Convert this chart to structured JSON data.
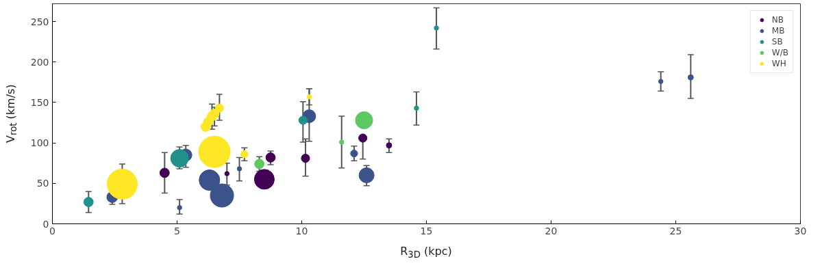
{
  "chart_data": {
    "type": "bubble",
    "xlabel": "R$_{3D}$ (kpc)",
    "ylabel": "V$_{rot}$ (km/s)",
    "xlim": [
      0,
      30
    ],
    "xticks": [
      0,
      5,
      10,
      15,
      20,
      25,
      30
    ],
    "ylim": [
      0,
      272
    ],
    "yticks": [
      0,
      50,
      100,
      150,
      200,
      250
    ],
    "grid": false,
    "legend": "top right",
    "marker": "circle",
    "series": [
      {
        "name": "NB",
        "color": "#440154",
        "x": [
          4.5,
          7.0,
          8.5,
          8.75,
          10.15,
          12.45,
          13.5
        ],
        "values": [
          63,
          62,
          55,
          82,
          81,
          106,
          97
        ],
        "sizes": [
          0.09,
          0.02,
          0.4,
          0.09,
          0.07,
          0.07,
          0.03
        ],
        "errors": [
          [
            38,
            88
          ],
          [
            48,
            75
          ],
          null,
          [
            73,
            90
          ],
          [
            59,
            105
          ],
          [
            80,
            106
          ],
          [
            88,
            105
          ]
        ]
      },
      {
        "name": "MB",
        "color": "#3b528b",
        "x": [
          2.4,
          5.1,
          5.35,
          6.3,
          6.8,
          7.5,
          10.3,
          12.1,
          12.6,
          24.4,
          25.6
        ],
        "values": [
          33,
          20,
          85,
          54,
          35,
          68,
          133,
          87,
          60,
          176,
          181
        ],
        "sizes": [
          0.12,
          0.02,
          0.15,
          0.43,
          0.55,
          0.02,
          0.17,
          0.05,
          0.23,
          0.02,
          0.03
        ],
        "errors": [
          [
            24,
            38
          ],
          [
            12,
            30
          ],
          [
            70,
            97
          ],
          null,
          null,
          [
            53,
            82
          ],
          [
            102,
            167
          ],
          [
            78,
            96
          ],
          [
            47,
            72
          ],
          [
            164,
            188
          ],
          [
            155,
            209
          ]
        ]
      },
      {
        "name": "SB",
        "color": "#21918c",
        "x": [
          1.45,
          5.1,
          10.05,
          14.6,
          15.4
        ],
        "values": [
          27,
          81,
          128,
          143,
          242
        ],
        "sizes": [
          0.09,
          0.32,
          0.07,
          0.02,
          0.02
        ],
        "errors": [
          [
            14,
            40
          ],
          [
            68,
            95
          ],
          [
            101,
            151
          ],
          [
            122,
            163
          ],
          [
            216,
            267
          ]
        ]
      },
      {
        "name": "W/B",
        "color": "#5ec962",
        "x": [
          8.3,
          11.6,
          12.5
        ],
        "values": [
          74,
          101,
          128
        ],
        "sizes": [
          0.09,
          0.02,
          0.3
        ],
        "errors": [
          [
            65,
            83
          ],
          [
            69,
            133
          ],
          null
        ]
      },
      {
        "name": "WH",
        "color": "#fde725",
        "x": [
          2.8,
          6.5,
          6.15,
          6.25,
          6.4,
          6.5,
          6.7,
          7.7,
          10.3
        ],
        "values": [
          49,
          89,
          120,
          126,
          133,
          136,
          143,
          86,
          157
        ],
        "sizes": [
          0.92,
          1,
          0.09,
          0.09,
          0.09,
          0.09,
          0.07,
          0.05,
          0.02
        ],
        "errors": [
          [
            25,
            74
          ],
          null,
          null,
          null,
          [
            117,
            148
          ],
          [
            121,
            144
          ],
          [
            128,
            160
          ],
          [
            78,
            94
          ],
          [
            147,
            167
          ]
        ]
      }
    ]
  }
}
